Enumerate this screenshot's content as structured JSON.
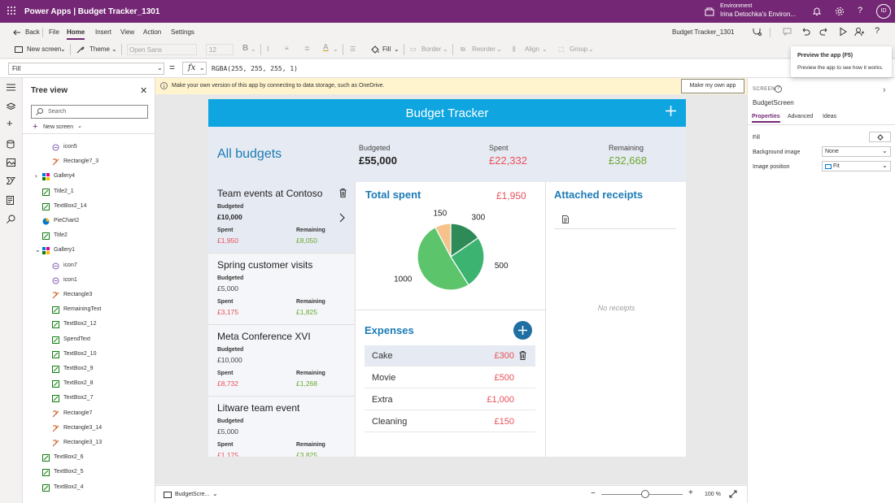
{
  "topbar": {
    "app_title": "Power Apps  |  Budget Tracker_1301",
    "environment_label": "Environment",
    "environment_name": "Irina Detochka's Environ...",
    "avatar_initials": "ID",
    "color": "#742774"
  },
  "menu": {
    "back": "Back",
    "items": [
      "File",
      "Home",
      "Insert",
      "View",
      "Action",
      "Settings"
    ],
    "active": "Home",
    "document_name": "Budget Tracker_1301"
  },
  "toolbar": {
    "new_screen": "New screen",
    "theme": "Theme",
    "font": "Open Sans",
    "font_size": "12",
    "bold": "B",
    "fill": "Fill",
    "border": "Border",
    "reorder": "Reorder",
    "align": "Align",
    "group": "Group"
  },
  "formula": {
    "property": "Fill",
    "equals": "=",
    "fx": "fx",
    "value": "RGBA(255, 255, 255, 1)"
  },
  "tooltip": {
    "title": "Preview the app (F5)",
    "body": "Preview the app to see how it works."
  },
  "notification": {
    "text": "Make your own version of this app by connecting to data storage, such as OneDrive.",
    "button": "Make my own app"
  },
  "tree": {
    "title": "Tree view",
    "search_placeholder": "Search",
    "new_screen": "New screen",
    "items": [
      {
        "label": "icon5",
        "icon": "icon"
      },
      {
        "label": "Rectangle7_3",
        "icon": "shape"
      },
      {
        "label": "Gallery4",
        "icon": "gallery"
      },
      {
        "label": "Title2_1",
        "icon": "text"
      },
      {
        "label": "TextBox2_14",
        "icon": "text"
      },
      {
        "label": "PieChart2",
        "icon": "chart"
      },
      {
        "label": "Title2",
        "icon": "text"
      },
      {
        "label": "Gallery1",
        "icon": "gallery"
      },
      {
        "label": "icon7",
        "icon": "icon"
      },
      {
        "label": "icon1",
        "icon": "icon"
      },
      {
        "label": "Rectangle3",
        "icon": "shape"
      },
      {
        "label": "RemainingText",
        "icon": "text"
      },
      {
        "label": "TextBox2_12",
        "icon": "text"
      },
      {
        "label": "SpendText",
        "icon": "text"
      },
      {
        "label": "TextBox2_10",
        "icon": "text"
      },
      {
        "label": "TextBox2_9",
        "icon": "text"
      },
      {
        "label": "TextBox2_8",
        "icon": "text"
      },
      {
        "label": "TextBox2_7",
        "icon": "text"
      },
      {
        "label": "Rectangle7",
        "icon": "shape"
      },
      {
        "label": "Rectangle3_14",
        "icon": "shape"
      },
      {
        "label": "Rectangle3_13",
        "icon": "shape"
      },
      {
        "label": "TextBox2_6",
        "icon": "text"
      },
      {
        "label": "TextBox2_5",
        "icon": "text"
      },
      {
        "label": "TextBox2_4",
        "icon": "text"
      }
    ]
  },
  "app": {
    "header_title": "Budget Tracker",
    "summary": {
      "title": "All budgets",
      "budgeted_label": "Budgeted",
      "budgeted_value": "£55,000",
      "spent_label": "Spent",
      "spent_value": "£22,332",
      "remaining_label": "Remaining",
      "remaining_value": "£32,668"
    },
    "budgets": [
      {
        "name": "Team events at Contoso",
        "budgeted_label": "Budgeted",
        "budgeted": "£10,000",
        "spent_label": "Spent",
        "spent": "£1,950",
        "remaining_label": "Remaining",
        "remaining": "£8,050"
      },
      {
        "name": "Spring customer visits",
        "budgeted_label": "Budgeted",
        "budgeted": "£5,000",
        "spent_label": "Spent",
        "spent": "£3,175",
        "remaining_label": "Remaining",
        "remaining": "£1,825"
      },
      {
        "name": "Meta Conference XVI",
        "budgeted_label": "Budgeted",
        "budgeted": "£10,000",
        "spent_label": "Spent",
        "spent": "£8,732",
        "remaining_label": "Remaining",
        "remaining": "£1,268"
      },
      {
        "name": "Litware team event",
        "budgeted_label": "Budgeted",
        "budgeted": "£5,000",
        "spent_label": "Spent",
        "spent": "£1,175",
        "remaining_label": "Remaining",
        "remaining": "£3,825"
      }
    ],
    "total_spent_title": "Total spent",
    "total_spent_value": "£1,950",
    "expenses_title": "Expenses",
    "expenses": [
      {
        "name": "Cake",
        "amount": "£300"
      },
      {
        "name": "Movie",
        "amount": "£500"
      },
      {
        "name": "Extra",
        "amount": "£1,000"
      },
      {
        "name": "Cleaning",
        "amount": "£150"
      }
    ],
    "receipts_title": "Attached receipts",
    "no_receipts": "No receipts"
  },
  "chart_data": {
    "type": "pie",
    "slices": [
      {
        "label": "300",
        "value": 300,
        "color": "#2e8b57"
      },
      {
        "label": "500",
        "value": 500,
        "color": "#3cb371"
      },
      {
        "label": "1000",
        "value": 1000,
        "color": "#5cc46a"
      },
      {
        "label": "150",
        "value": 150,
        "color": "#f6c28b"
      }
    ]
  },
  "rightpanel": {
    "screen_label": "SCREEN",
    "screen_name": "BudgetScreen",
    "tabs": [
      "Properties",
      "Advanced",
      "Ideas"
    ],
    "fill_label": "Fill",
    "bg_image_label": "Background image",
    "bg_image_value": "None",
    "image_position_label": "Image position",
    "image_position_value": "Fit"
  },
  "bottombar": {
    "screen_selector": "BudgetScre...",
    "zoom_minus": "−",
    "zoom_plus": "+",
    "zoom_value": "100 %"
  },
  "colors": {
    "header_blue": "#0ea5e0",
    "title_blue": "#1b7bb6",
    "spent_red": "#e8505b",
    "remaining_green": "#6aa830"
  }
}
